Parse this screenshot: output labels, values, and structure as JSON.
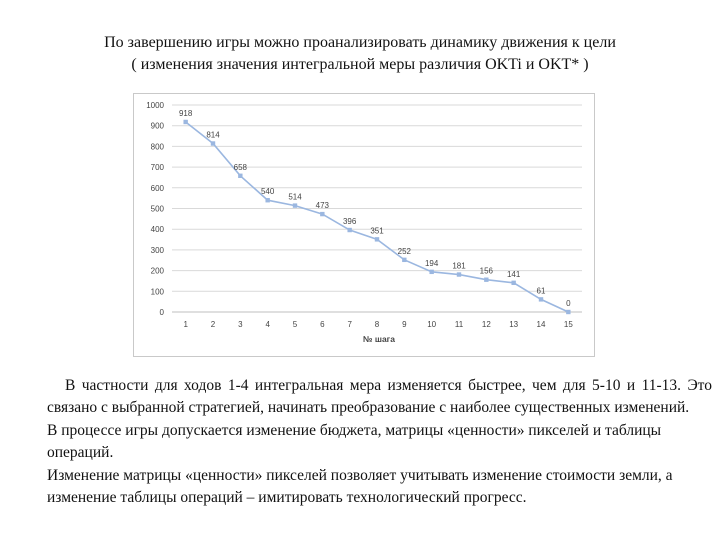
{
  "heading": {
    "line1": "По завершению игры можно проанализировать динамику движения к цели",
    "line2": "( изменения значения интегральной меры различия OKTi и OKT* )"
  },
  "chart_data": {
    "type": "line",
    "title": "",
    "xlabel": "№ шага",
    "ylabel": "",
    "categories": [
      "1",
      "2",
      "3",
      "4",
      "5",
      "6",
      "7",
      "8",
      "9",
      "10",
      "11",
      "12",
      "13",
      "14",
      "15"
    ],
    "series": [
      {
        "values": [
          918,
          814,
          658,
          540,
          514,
          473,
          396,
          351,
          252,
          194,
          181,
          156,
          141,
          61,
          0
        ]
      }
    ],
    "ylim": [
      0,
      1000
    ],
    "yticks": [
      "0",
      "100",
      "200",
      "300",
      "400",
      "500",
      "600",
      "700",
      "800",
      "900",
      "1000"
    ],
    "data_labels": [
      "918",
      "814",
      "658",
      "540",
      "514",
      "473",
      "396",
      "351",
      "252",
      "194",
      "181",
      "156",
      "141",
      "61",
      "0"
    ],
    "grid": true,
    "legend": "none",
    "line_color": "#9bb7e0",
    "grid_color": "#d9d9d9"
  },
  "paragraphs": [
    "В частности для ходов 1-4 интегральная мера изменяется быстрее, чем для 5-10 и 11-13. Это связано с выбранной стратегией, начинать преобразование с наиболее существенных изменений.",
    "В процессе игры допускается изменение бюджета, матрицы «ценности» пикселей и таблицы операций.",
    "Изменение матрицы «ценности» пикселей позволяет учитывать изменение стоимости земли, а изменение таблицы операций – имитировать технологический прогресс."
  ]
}
